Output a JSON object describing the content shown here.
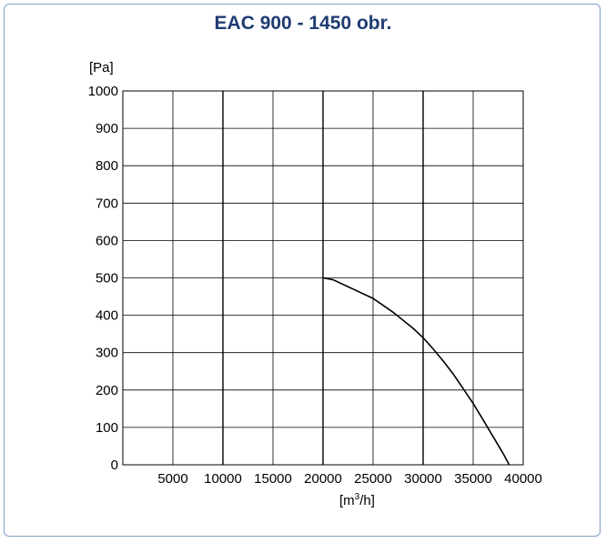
{
  "chart_data": {
    "type": "line",
    "title": "EAC 900 - 1450 obr.",
    "ylabel": "[Pa]",
    "xlabel_base": "[m",
    "xlabel_sup": "3",
    "xlabel_tail": "/h]",
    "xlim": [
      0,
      40000
    ],
    "ylim": [
      0,
      1000
    ],
    "x_ticks": [
      5000,
      10000,
      15000,
      20000,
      25000,
      30000,
      35000,
      40000
    ],
    "y_ticks": [
      0,
      100,
      200,
      300,
      400,
      500,
      600,
      700,
      800,
      900,
      1000
    ],
    "grid": true,
    "series": [
      {
        "x": [
          20000,
          21000,
          23000,
          25000,
          27000,
          29000,
          30000,
          31000,
          32000,
          33000,
          34000,
          35000,
          36000,
          37000,
          38000,
          38600
        ],
        "y": [
          500,
          495,
          470,
          445,
          408,
          365,
          340,
          310,
          278,
          243,
          204,
          164,
          120,
          75,
          30,
          0
        ]
      }
    ],
    "line_color": "#000000"
  }
}
